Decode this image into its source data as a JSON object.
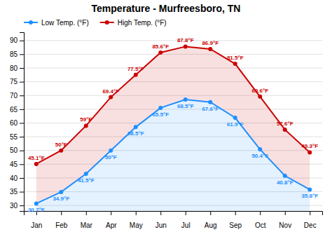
{
  "chart_data": {
    "type": "line",
    "title": "Temperature - Murfreesboro, TN",
    "categories": [
      "Jan",
      "Feb",
      "Mar",
      "Apr",
      "May",
      "Jun",
      "Jul",
      "Aug",
      "Sep",
      "Oct",
      "Nov",
      "Dec"
    ],
    "series": [
      {
        "name": "Low Temp. (°F)",
        "color": "#1e8fff",
        "marker": "circle",
        "line_style": "solid",
        "values": [
          30.7,
          34.9,
          41.5,
          50.0,
          58.5,
          65.5,
          68.5,
          67.6,
          61.9,
          50.4,
          40.8,
          35.8
        ],
        "value_labels": [
          "30.7°F",
          "34.9°F",
          "41.5°F",
          "50°F",
          "58.5°F",
          "65.5°F",
          "68.5°F",
          "67.6°F",
          "61.9°F",
          "50.4°F",
          "40.8°F",
          "35.8°F"
        ]
      },
      {
        "name": "High Temp. (°F)",
        "color": "#cc0000",
        "marker": "circle",
        "line_style": "solid",
        "values": [
          45.1,
          50.0,
          59.0,
          69.4,
          77.5,
          85.6,
          87.8,
          86.9,
          81.5,
          69.6,
          57.6,
          49.3
        ],
        "value_labels": [
          "45.1°F",
          "50°F",
          "59°F",
          "69.4°F",
          "77.5°F",
          "85.6°F",
          "87.8°F",
          "86.9°F",
          "81.5°F",
          "69.6°F",
          "57.6°F",
          "49.3°F"
        ]
      }
    ],
    "ylim": [
      28,
      93
    ],
    "yticks": [
      30,
      35,
      40,
      45,
      50,
      55,
      60,
      65,
      70,
      75,
      80,
      85,
      90
    ],
    "grid": true,
    "legend": "upper left",
    "data_labels": true
  }
}
